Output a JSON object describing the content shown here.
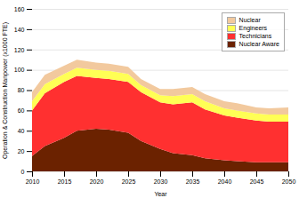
{
  "chart_data": {
    "type": "area",
    "stacked": true,
    "xlabel": "Year",
    "ylabel": "Operation & Construction Manpower (x1000 FTE)",
    "x": [
      2010,
      2012,
      2015,
      2017,
      2020,
      2022,
      2025,
      2027,
      2030,
      2032,
      2035,
      2037,
      2040,
      2042,
      2045,
      2047,
      2050
    ],
    "series": [
      {
        "name": "Nuclear Aware",
        "color": "#6b2200",
        "values": [
          15,
          25,
          33,
          40,
          42,
          41,
          38,
          30,
          22,
          18,
          16,
          13,
          11,
          10,
          9,
          9,
          9
        ]
      },
      {
        "name": "Technicians",
        "color": "#ff3030",
        "values": [
          45,
          52,
          55,
          54,
          50,
          50,
          50,
          48,
          46,
          48,
          52,
          48,
          44,
          43,
          41,
          40,
          40
        ]
      },
      {
        "name": "Engineers",
        "color": "#ffff55",
        "values": [
          9,
          9,
          8,
          8,
          8,
          8,
          8,
          7,
          7,
          8,
          8,
          8,
          7,
          7,
          7,
          7,
          7
        ]
      },
      {
        "name": "Nuclear",
        "color": "#f2c99e",
        "values": [
          9,
          9,
          8,
          8,
          7,
          7,
          7,
          6,
          6,
          7,
          7,
          7,
          7,
          7,
          6,
          6,
          7
        ]
      }
    ],
    "xlim": [
      2010,
      2050
    ],
    "xticks": [
      2010,
      2015,
      2020,
      2025,
      2030,
      2035,
      2040,
      2045,
      2050
    ],
    "ylim": [
      0,
      160
    ],
    "yticks": [
      0,
      20,
      40,
      60,
      80,
      100,
      120,
      140,
      160
    ],
    "grid": true,
    "legend": "upper right"
  }
}
